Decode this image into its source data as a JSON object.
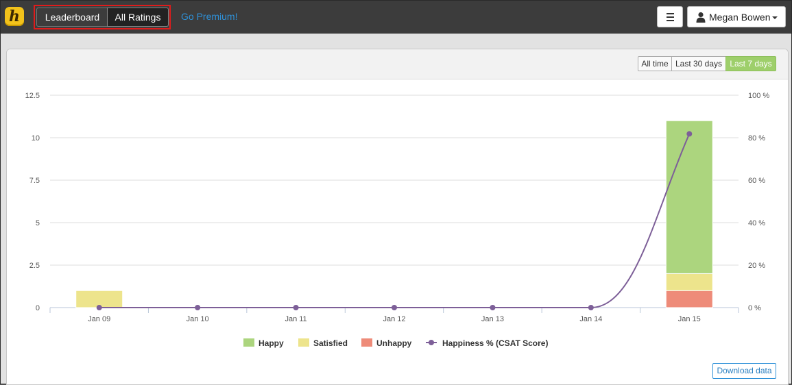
{
  "navbar": {
    "logo_letter": "h",
    "leaderboard_label": "Leaderboard",
    "all_ratings_label": "All Ratings",
    "premium_label": "Go Premium!",
    "user_name": "Megan Bowen"
  },
  "range": {
    "all_time": "All time",
    "last_30": "Last 30 days",
    "last_7": "Last 7 days",
    "selected": "Last 7 days"
  },
  "download_label": "Download data",
  "colors": {
    "happy": "#acd57e",
    "satisfied": "#ede48c",
    "unhappy": "#ee8b79",
    "line": "#7d5f98",
    "selected_range": "#9ecf6b"
  },
  "chart_data": {
    "type": "bar",
    "stacked": true,
    "categories": [
      "Jan 09",
      "Jan 10",
      "Jan 11",
      "Jan 12",
      "Jan 13",
      "Jan 14",
      "Jan 15"
    ],
    "series": [
      {
        "name": "Happy",
        "axis": "left",
        "values": [
          0,
          0,
          0,
          0,
          0,
          0,
          9
        ]
      },
      {
        "name": "Satisfied",
        "axis": "left",
        "values": [
          1,
          0,
          0,
          0,
          0,
          0,
          1
        ]
      },
      {
        "name": "Unhappy",
        "axis": "left",
        "values": [
          0,
          0,
          0,
          0,
          0,
          0,
          1
        ]
      },
      {
        "name": "Happiness % (CSAT Score)",
        "type": "line",
        "axis": "right",
        "values": [
          0,
          0,
          0,
          0,
          0,
          0,
          81.8
        ]
      }
    ],
    "y_left": {
      "min": 0,
      "max": 12.5,
      "ticks": [
        "0",
        "2.5",
        "5",
        "7.5",
        "10",
        "12.5"
      ]
    },
    "y_right": {
      "min": 0,
      "max": 100,
      "ticks": [
        "0 %",
        "20 %",
        "40 %",
        "60 %",
        "80 %",
        "100 %"
      ]
    },
    "grid": true,
    "legend": "bottom"
  }
}
